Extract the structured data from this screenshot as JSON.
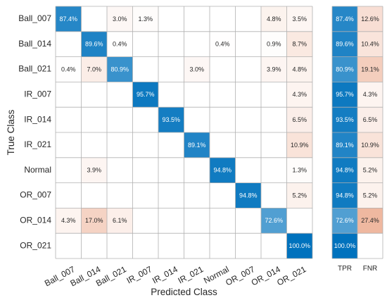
{
  "chart_data": {
    "type": "heatmap",
    "subtype": "confusion-matrix-row-normalized",
    "title": "",
    "xlabel": "Predicted Class",
    "ylabel": "True Class",
    "classes": [
      "Ball_007",
      "Ball_014",
      "Ball_021",
      "IR_007",
      "IR_014",
      "IR_021",
      "Normal",
      "OR_007",
      "OR_014",
      "OR_021"
    ],
    "value_format": "%",
    "diagonal_color": "#0072bd",
    "off_diagonal_color": "#d95319",
    "matrix": [
      [
        87.4,
        null,
        3.0,
        1.3,
        null,
        null,
        null,
        null,
        4.8,
        3.5
      ],
      [
        null,
        89.6,
        0.4,
        null,
        null,
        null,
        0.4,
        null,
        0.9,
        8.7
      ],
      [
        0.4,
        7.0,
        80.9,
        null,
        null,
        3.0,
        null,
        null,
        3.9,
        4.8
      ],
      [
        null,
        null,
        null,
        95.7,
        null,
        null,
        null,
        null,
        null,
        4.3
      ],
      [
        null,
        null,
        null,
        null,
        93.5,
        null,
        null,
        null,
        null,
        6.5
      ],
      [
        null,
        null,
        null,
        null,
        null,
        89.1,
        null,
        null,
        null,
        10.9
      ],
      [
        null,
        3.9,
        null,
        null,
        null,
        null,
        94.8,
        null,
        null,
        1.3
      ],
      [
        null,
        null,
        null,
        null,
        null,
        null,
        null,
        94.8,
        null,
        5.2
      ],
      [
        4.3,
        17.0,
        6.1,
        null,
        null,
        null,
        null,
        null,
        72.6,
        null
      ],
      [
        null,
        null,
        null,
        null,
        null,
        null,
        null,
        null,
        null,
        100.0
      ]
    ],
    "summary_columns": [
      "TPR",
      "FNR"
    ],
    "tpr": [
      87.4,
      89.6,
      80.9,
      95.7,
      93.5,
      89.1,
      94.8,
      94.8,
      72.6,
      100.0
    ],
    "fnr": [
      12.6,
      10.4,
      19.1,
      4.3,
      6.5,
      10.9,
      5.2,
      5.2,
      27.4,
      null
    ]
  }
}
